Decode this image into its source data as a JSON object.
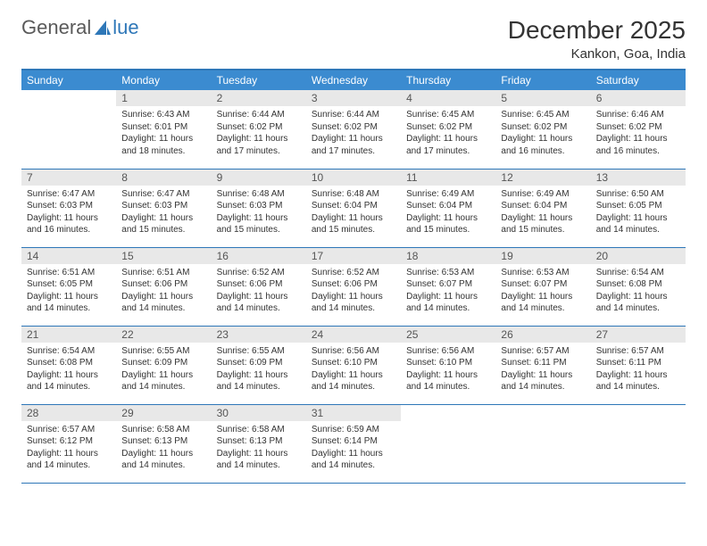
{
  "logo": {
    "text_left": "General",
    "text_right": "lue"
  },
  "title": "December 2025",
  "location": "Kankon, Goa, India",
  "colors": {
    "header_bg": "#3b8bd0",
    "header_text": "#ffffff",
    "border": "#2e77b8",
    "daynum_bg": "#e8e8e8",
    "daynum_text": "#555555",
    "body_text": "#333333",
    "logo_gray": "#5a5a5a",
    "logo_blue": "#2e77b8",
    "page_bg": "#ffffff"
  },
  "weekdays": [
    "Sunday",
    "Monday",
    "Tuesday",
    "Wednesday",
    "Thursday",
    "Friday",
    "Saturday"
  ],
  "start_offset": 1,
  "days": [
    {
      "n": "1",
      "sunrise": "Sunrise: 6:43 AM",
      "sunset": "Sunset: 6:01 PM",
      "daylight": "Daylight: 11 hours and 18 minutes."
    },
    {
      "n": "2",
      "sunrise": "Sunrise: 6:44 AM",
      "sunset": "Sunset: 6:02 PM",
      "daylight": "Daylight: 11 hours and 17 minutes."
    },
    {
      "n": "3",
      "sunrise": "Sunrise: 6:44 AM",
      "sunset": "Sunset: 6:02 PM",
      "daylight": "Daylight: 11 hours and 17 minutes."
    },
    {
      "n": "4",
      "sunrise": "Sunrise: 6:45 AM",
      "sunset": "Sunset: 6:02 PM",
      "daylight": "Daylight: 11 hours and 17 minutes."
    },
    {
      "n": "5",
      "sunrise": "Sunrise: 6:45 AM",
      "sunset": "Sunset: 6:02 PM",
      "daylight": "Daylight: 11 hours and 16 minutes."
    },
    {
      "n": "6",
      "sunrise": "Sunrise: 6:46 AM",
      "sunset": "Sunset: 6:02 PM",
      "daylight": "Daylight: 11 hours and 16 minutes."
    },
    {
      "n": "7",
      "sunrise": "Sunrise: 6:47 AM",
      "sunset": "Sunset: 6:03 PM",
      "daylight": "Daylight: 11 hours and 16 minutes."
    },
    {
      "n": "8",
      "sunrise": "Sunrise: 6:47 AM",
      "sunset": "Sunset: 6:03 PM",
      "daylight": "Daylight: 11 hours and 15 minutes."
    },
    {
      "n": "9",
      "sunrise": "Sunrise: 6:48 AM",
      "sunset": "Sunset: 6:03 PM",
      "daylight": "Daylight: 11 hours and 15 minutes."
    },
    {
      "n": "10",
      "sunrise": "Sunrise: 6:48 AM",
      "sunset": "Sunset: 6:04 PM",
      "daylight": "Daylight: 11 hours and 15 minutes."
    },
    {
      "n": "11",
      "sunrise": "Sunrise: 6:49 AM",
      "sunset": "Sunset: 6:04 PM",
      "daylight": "Daylight: 11 hours and 15 minutes."
    },
    {
      "n": "12",
      "sunrise": "Sunrise: 6:49 AM",
      "sunset": "Sunset: 6:04 PM",
      "daylight": "Daylight: 11 hours and 15 minutes."
    },
    {
      "n": "13",
      "sunrise": "Sunrise: 6:50 AM",
      "sunset": "Sunset: 6:05 PM",
      "daylight": "Daylight: 11 hours and 14 minutes."
    },
    {
      "n": "14",
      "sunrise": "Sunrise: 6:51 AM",
      "sunset": "Sunset: 6:05 PM",
      "daylight": "Daylight: 11 hours and 14 minutes."
    },
    {
      "n": "15",
      "sunrise": "Sunrise: 6:51 AM",
      "sunset": "Sunset: 6:06 PM",
      "daylight": "Daylight: 11 hours and 14 minutes."
    },
    {
      "n": "16",
      "sunrise": "Sunrise: 6:52 AM",
      "sunset": "Sunset: 6:06 PM",
      "daylight": "Daylight: 11 hours and 14 minutes."
    },
    {
      "n": "17",
      "sunrise": "Sunrise: 6:52 AM",
      "sunset": "Sunset: 6:06 PM",
      "daylight": "Daylight: 11 hours and 14 minutes."
    },
    {
      "n": "18",
      "sunrise": "Sunrise: 6:53 AM",
      "sunset": "Sunset: 6:07 PM",
      "daylight": "Daylight: 11 hours and 14 minutes."
    },
    {
      "n": "19",
      "sunrise": "Sunrise: 6:53 AM",
      "sunset": "Sunset: 6:07 PM",
      "daylight": "Daylight: 11 hours and 14 minutes."
    },
    {
      "n": "20",
      "sunrise": "Sunrise: 6:54 AM",
      "sunset": "Sunset: 6:08 PM",
      "daylight": "Daylight: 11 hours and 14 minutes."
    },
    {
      "n": "21",
      "sunrise": "Sunrise: 6:54 AM",
      "sunset": "Sunset: 6:08 PM",
      "daylight": "Daylight: 11 hours and 14 minutes."
    },
    {
      "n": "22",
      "sunrise": "Sunrise: 6:55 AM",
      "sunset": "Sunset: 6:09 PM",
      "daylight": "Daylight: 11 hours and 14 minutes."
    },
    {
      "n": "23",
      "sunrise": "Sunrise: 6:55 AM",
      "sunset": "Sunset: 6:09 PM",
      "daylight": "Daylight: 11 hours and 14 minutes."
    },
    {
      "n": "24",
      "sunrise": "Sunrise: 6:56 AM",
      "sunset": "Sunset: 6:10 PM",
      "daylight": "Daylight: 11 hours and 14 minutes."
    },
    {
      "n": "25",
      "sunrise": "Sunrise: 6:56 AM",
      "sunset": "Sunset: 6:10 PM",
      "daylight": "Daylight: 11 hours and 14 minutes."
    },
    {
      "n": "26",
      "sunrise": "Sunrise: 6:57 AM",
      "sunset": "Sunset: 6:11 PM",
      "daylight": "Daylight: 11 hours and 14 minutes."
    },
    {
      "n": "27",
      "sunrise": "Sunrise: 6:57 AM",
      "sunset": "Sunset: 6:11 PM",
      "daylight": "Daylight: 11 hours and 14 minutes."
    },
    {
      "n": "28",
      "sunrise": "Sunrise: 6:57 AM",
      "sunset": "Sunset: 6:12 PM",
      "daylight": "Daylight: 11 hours and 14 minutes."
    },
    {
      "n": "29",
      "sunrise": "Sunrise: 6:58 AM",
      "sunset": "Sunset: 6:13 PM",
      "daylight": "Daylight: 11 hours and 14 minutes."
    },
    {
      "n": "30",
      "sunrise": "Sunrise: 6:58 AM",
      "sunset": "Sunset: 6:13 PM",
      "daylight": "Daylight: 11 hours and 14 minutes."
    },
    {
      "n": "31",
      "sunrise": "Sunrise: 6:59 AM",
      "sunset": "Sunset: 6:14 PM",
      "daylight": "Daylight: 11 hours and 14 minutes."
    }
  ]
}
